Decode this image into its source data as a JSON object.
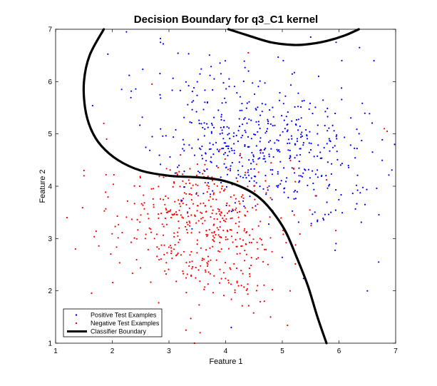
{
  "chart_data": {
    "type": "scatter",
    "title": "Decision Boundary for q3_C1 kernel",
    "xlabel": "Feature 1",
    "ylabel": "Feature 2",
    "xlim": [
      1,
      7
    ],
    "ylim": [
      1,
      7
    ],
    "xticks": [
      "1",
      "2",
      "3",
      "4",
      "5",
      "6",
      "7"
    ],
    "yticks": [
      "1",
      "2",
      "3",
      "4",
      "5",
      "6",
      "7"
    ],
    "grid": false,
    "legend_position": "bottom-left",
    "series": [
      {
        "name": "Positive Test Examples",
        "color": "#0000ff",
        "marker": "dot",
        "clusters": [
          {
            "cx": 4.6,
            "cy": 4.75,
            "sx": 0.85,
            "sy": 0.55,
            "n": 430,
            "seed": 11
          },
          {
            "cx": 3.6,
            "cy": 5.8,
            "sx": 0.9,
            "sy": 0.5,
            "n": 60,
            "seed": 23
          },
          {
            "cx": 5.8,
            "cy": 4.0,
            "sx": 0.5,
            "sy": 0.7,
            "n": 50,
            "seed": 37
          }
        ],
        "points": [
          [
            2.25,
            6.95
          ],
          [
            2.85,
            6.75
          ],
          [
            2.9,
            6.72
          ],
          [
            5.5,
            6.85
          ],
          [
            5.95,
            6.75
          ],
          [
            6.05,
            6.4
          ],
          [
            6.5,
            2.0
          ],
          [
            6.7,
            2.55
          ],
          [
            4.1,
            1.3
          ]
        ]
      },
      {
        "name": "Negative Test Examples",
        "color": "#ff0000",
        "marker": "dot",
        "clusters": [
          {
            "cx": 3.5,
            "cy": 3.35,
            "sx": 0.75,
            "sy": 0.55,
            "n": 430,
            "seed": 53
          },
          {
            "cx": 4.1,
            "cy": 2.3,
            "sx": 0.45,
            "sy": 0.45,
            "n": 70,
            "seed": 71
          }
        ],
        "points": [
          [
            1.2,
            3.4
          ],
          [
            1.35,
            2.8
          ],
          [
            1.5,
            4.3
          ],
          [
            1.5,
            4.2
          ],
          [
            1.85,
            5.2
          ],
          [
            1.9,
            4.9
          ],
          [
            2.7,
            5.95
          ],
          [
            3.3,
            1.25
          ],
          [
            3.55,
            1.2
          ],
          [
            3.45,
            1.0
          ],
          [
            4.4,
            6.55
          ],
          [
            6.8,
            5.1
          ],
          [
            6.85,
            5.05
          ]
        ]
      }
    ],
    "boundary": {
      "name": "Classifier Boundary",
      "color": "#000000",
      "segments": [
        [
          [
            1.85,
            7.0
          ],
          [
            1.6,
            6.5
          ],
          [
            1.5,
            6.0
          ],
          [
            1.52,
            5.5
          ],
          [
            1.62,
            5.1
          ],
          [
            1.8,
            4.78
          ],
          [
            2.1,
            4.5
          ],
          [
            2.5,
            4.3
          ],
          [
            3.0,
            4.2
          ],
          [
            3.5,
            4.17
          ],
          [
            3.9,
            4.12
          ],
          [
            4.25,
            4.0
          ],
          [
            4.55,
            3.82
          ],
          [
            4.8,
            3.55
          ],
          [
            5.05,
            3.15
          ],
          [
            5.25,
            2.65
          ],
          [
            5.45,
            2.1
          ],
          [
            5.62,
            1.5
          ],
          [
            5.78,
            1.0
          ]
        ],
        [
          [
            4.05,
            7.0
          ],
          [
            4.4,
            6.88
          ],
          [
            4.8,
            6.75
          ],
          [
            5.2,
            6.7
          ],
          [
            5.5,
            6.72
          ],
          [
            5.8,
            6.78
          ],
          [
            6.1,
            6.88
          ],
          [
            6.35,
            7.0
          ]
        ]
      ]
    }
  }
}
